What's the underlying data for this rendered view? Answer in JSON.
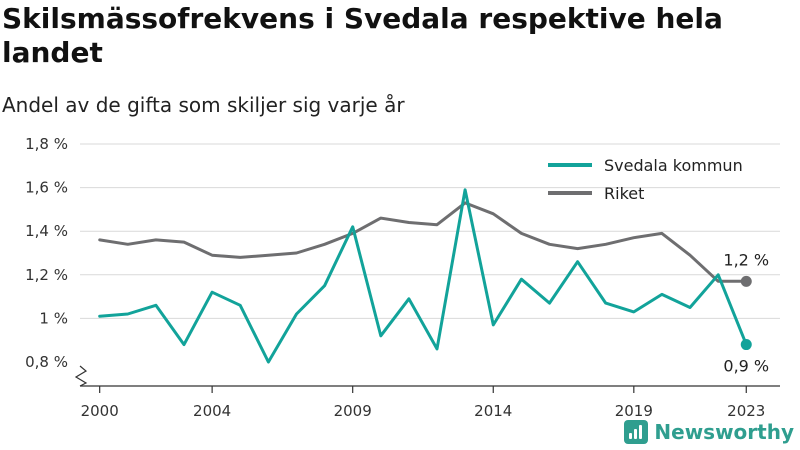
{
  "header": {
    "title": "Skilsmässofrekvens i Svedala respektive hela landet",
    "subtitle": "Andel av de gifta som skiljer sig varje år"
  },
  "brand": {
    "name": "Newsworthy",
    "icon": "newsworthy-logo-icon",
    "color": "#2f9e8f"
  },
  "chart_data": {
    "type": "line",
    "title": "Skilsmässofrekvens i Svedala respektive hela landet",
    "subtitle": "Andel av de gifta som skiljer sig varje år",
    "x": [
      2000,
      2001,
      2002,
      2003,
      2004,
      2005,
      2006,
      2007,
      2008,
      2009,
      2010,
      2011,
      2012,
      2013,
      2014,
      2015,
      2016,
      2017,
      2018,
      2019,
      2020,
      2021,
      2022,
      2023
    ],
    "series": [
      {
        "name": "Svedala kommun",
        "color": "#12a39a",
        "values": [
          1.01,
          1.02,
          1.06,
          0.88,
          1.12,
          1.06,
          0.8,
          1.02,
          1.15,
          1.42,
          0.92,
          1.09,
          0.86,
          1.59,
          0.97,
          1.18,
          1.07,
          1.26,
          1.07,
          1.03,
          1.11,
          1.05,
          1.2,
          0.88
        ]
      },
      {
        "name": "Riket",
        "color": "#6e6e70",
        "values": [
          1.36,
          1.34,
          1.36,
          1.35,
          1.29,
          1.28,
          1.29,
          1.3,
          1.34,
          1.39,
          1.46,
          1.44,
          1.43,
          1.53,
          1.48,
          1.39,
          1.34,
          1.32,
          1.34,
          1.37,
          1.39,
          1.29,
          1.17,
          1.17
        ]
      }
    ],
    "xticks": [
      2000,
      2004,
      2009,
      2014,
      2019,
      2023
    ],
    "yticks": [
      {
        "value": 0.8,
        "label": "0,8 %"
      },
      {
        "value": 1.0,
        "label": "1 %"
      },
      {
        "value": 1.2,
        "label": "1,2 %"
      },
      {
        "value": 1.4,
        "label": "1,4 %"
      },
      {
        "value": 1.6,
        "label": "1,6 %"
      },
      {
        "value": 1.8,
        "label": "1,8 %"
      }
    ],
    "ylim": [
      0.8,
      1.8
    ],
    "y_axis_break": true,
    "grid": "horizontal",
    "legend": "top-right",
    "end_labels": [
      {
        "series": "Riket",
        "label": "1,2 %",
        "position": "above"
      },
      {
        "series": "Svedala kommun",
        "label": "0,9 %",
        "position": "below"
      }
    ]
  }
}
